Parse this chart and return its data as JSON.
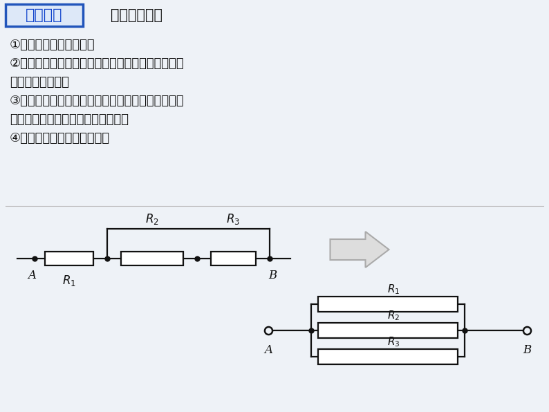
{
  "bg_color": "#eef2f7",
  "title_box_text": "简化方法",
  "title_box_bg": "#dde8f8",
  "title_box_border": "#2255bb",
  "title_text_color": "#1144cc",
  "subtitle_text": "等势点排列法",
  "subtitle_color": "#111111",
  "body_lines": [
    "①将各节点用字母标上。",
    "②判定各节点电势的高低。（若原电路未加电压，可",
    "先假设加上电压）",
    "③将各节点按电势高低自左向右（或自上向下）依次",
    "排列，再将各节点之间的支路画出。",
    "④将画出的等效图加工整理。"
  ],
  "body_color": "#111111",
  "divider_color": "#bbbbbb",
  "circuit_color": "#111111",
  "arrow_fill": "#dddddd",
  "arrow_border": "#aaaaaa",
  "dot_color": "#111111"
}
